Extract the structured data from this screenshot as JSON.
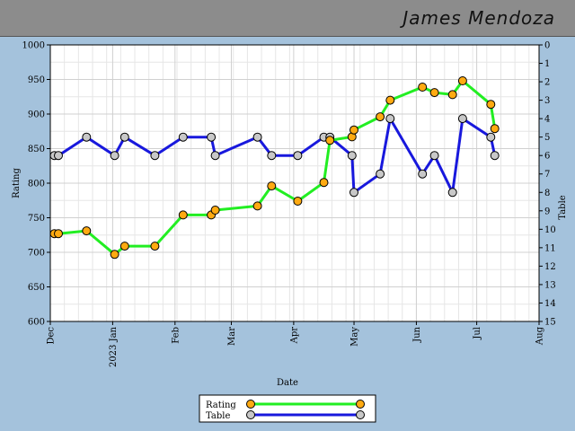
{
  "player_name": "James Mendoza",
  "chart_data": {
    "type": "line",
    "xlabel": "Date",
    "ylabel_left": "Rating",
    "ylabel_right": "Table",
    "left_ylim": [
      600,
      1000
    ],
    "left_ticks": [
      600,
      650,
      700,
      750,
      800,
      850,
      900,
      950,
      1000
    ],
    "right_ylim": [
      0,
      15
    ],
    "right_ticks": [
      0,
      1,
      2,
      3,
      4,
      5,
      6,
      7,
      8,
      9,
      10,
      11,
      12,
      13,
      14,
      15
    ],
    "right_inverted": true,
    "x_ticks": [
      {
        "date": "2022-12-01",
        "label": "Dec"
      },
      {
        "date": "2023-01-01",
        "label": "2023 Jan"
      },
      {
        "date": "2023-02-01",
        "label": "Feb"
      },
      {
        "date": "2023-03-01",
        "label": "Mar"
      },
      {
        "date": "2023-04-01",
        "label": "Apr"
      },
      {
        "date": "2023-05-01",
        "label": "May"
      },
      {
        "date": "2023-06-01",
        "label": "Jun"
      },
      {
        "date": "2023-07-01",
        "label": "Jul"
      },
      {
        "date": "2023-08-01",
        "label": "Aug"
      }
    ],
    "xlim": [
      "2022-12-01",
      "2023-08-01"
    ],
    "grid": true,
    "legend_position": "bottom-center",
    "series": [
      {
        "name": "Rating",
        "axis": "left",
        "line_color": "#22ee22",
        "marker_color": "#ffaa11",
        "points": [
          [
            "2022-12-03",
            727
          ],
          [
            "2022-12-05",
            727
          ],
          [
            "2022-12-19",
            731
          ],
          [
            "2023-01-02",
            697
          ],
          [
            "2023-01-07",
            709
          ],
          [
            "2023-01-22",
            709
          ],
          [
            "2023-02-05",
            754
          ],
          [
            "2023-02-19",
            754
          ],
          [
            "2023-02-21",
            761
          ],
          [
            "2023-03-14",
            767
          ],
          [
            "2023-03-21",
            796
          ],
          [
            "2023-04-03",
            774
          ],
          [
            "2023-04-16",
            801
          ],
          [
            "2023-04-19",
            862
          ],
          [
            "2023-04-30",
            867
          ],
          [
            "2023-05-01",
            877
          ],
          [
            "2023-05-14",
            896
          ],
          [
            "2023-05-19",
            920
          ],
          [
            "2023-06-04",
            939
          ],
          [
            "2023-06-10",
            931
          ],
          [
            "2023-06-19",
            928
          ],
          [
            "2023-06-24",
            948
          ],
          [
            "2023-07-08",
            914
          ],
          [
            "2023-07-10",
            879
          ]
        ]
      },
      {
        "name": "Table",
        "axis": "right",
        "line_color": "#1818dd",
        "marker_color": "#c8c8c8",
        "points": [
          [
            "2022-12-03",
            6
          ],
          [
            "2022-12-05",
            6
          ],
          [
            "2022-12-19",
            5
          ],
          [
            "2023-01-02",
            6
          ],
          [
            "2023-01-07",
            5
          ],
          [
            "2023-01-22",
            6
          ],
          [
            "2023-02-05",
            5
          ],
          [
            "2023-02-19",
            5
          ],
          [
            "2023-02-21",
            6
          ],
          [
            "2023-03-14",
            5
          ],
          [
            "2023-03-21",
            6
          ],
          [
            "2023-04-03",
            6
          ],
          [
            "2023-04-16",
            5
          ],
          [
            "2023-04-19",
            5
          ],
          [
            "2023-04-30",
            6
          ],
          [
            "2023-05-01",
            8
          ],
          [
            "2023-05-14",
            7
          ],
          [
            "2023-05-19",
            4
          ],
          [
            "2023-06-04",
            7
          ],
          [
            "2023-06-10",
            6
          ],
          [
            "2023-06-19",
            8
          ],
          [
            "2023-06-24",
            4
          ],
          [
            "2023-07-08",
            5
          ],
          [
            "2023-07-10",
            6
          ]
        ]
      }
    ]
  }
}
